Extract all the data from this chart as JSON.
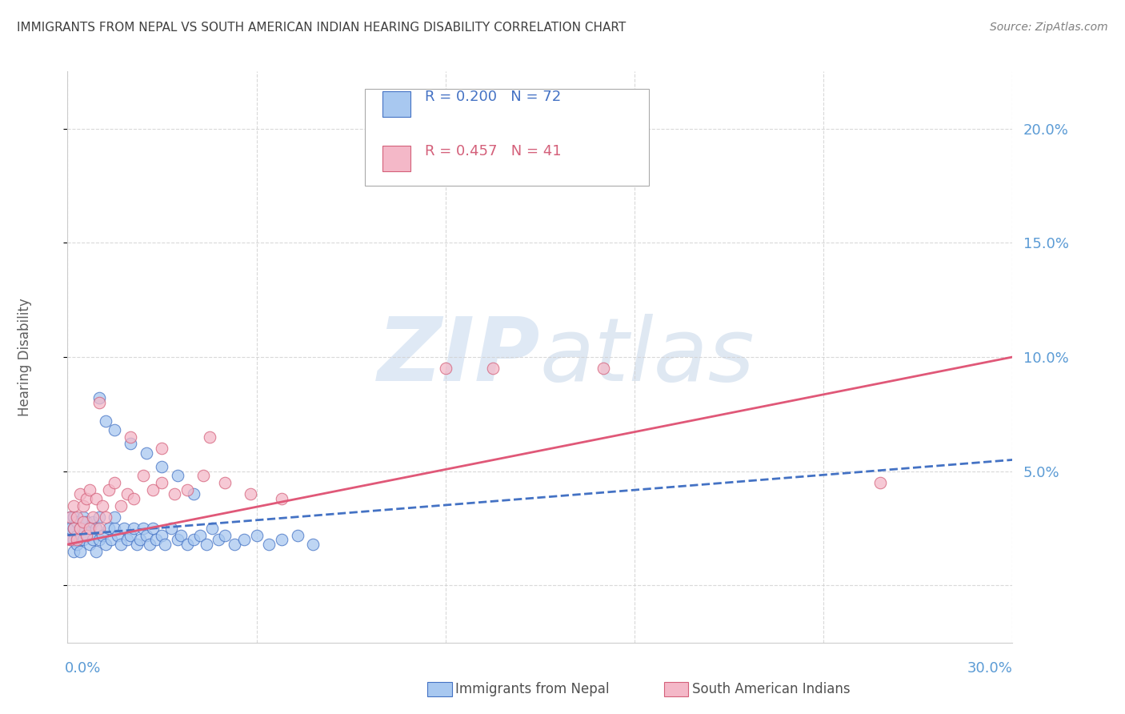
{
  "title": "IMMIGRANTS FROM NEPAL VS SOUTH AMERICAN INDIAN HEARING DISABILITY CORRELATION CHART",
  "source": "Source: ZipAtlas.com",
  "ylabel": "Hearing Disability",
  "xlim": [
    0.0,
    0.3
  ],
  "ylim": [
    -0.025,
    0.225
  ],
  "yticks": [
    0.0,
    0.05,
    0.1,
    0.15,
    0.2
  ],
  "yticklabels": [
    "",
    "5.0%",
    "10.0%",
    "15.0%",
    "20.0%"
  ],
  "xticks": [
    0.0,
    0.06,
    0.12,
    0.18,
    0.24,
    0.3
  ],
  "nepal_color": "#a8c8f0",
  "nepal_edge_color": "#4472c4",
  "sa_color": "#f4b8c8",
  "sa_edge_color": "#d4607a",
  "nepal_trend_color": "#4472c4",
  "sa_trend_color": "#e05878",
  "nepal_R": 0.2,
  "nepal_N": 72,
  "sa_R": 0.457,
  "sa_N": 41,
  "right_axis_color": "#5b9bd5",
  "grid_color": "#d0d0d0",
  "background": "#ffffff",
  "title_color": "#404040",
  "source_color": "#808080",
  "ylabel_color": "#606060",
  "watermark_color": "#d0e4f4",
  "nepal_x": [
    0.001,
    0.001,
    0.001,
    0.002,
    0.002,
    0.002,
    0.002,
    0.003,
    0.003,
    0.003,
    0.004,
    0.004,
    0.004,
    0.005,
    0.005,
    0.005,
    0.006,
    0.006,
    0.007,
    0.007,
    0.008,
    0.008,
    0.009,
    0.009,
    0.01,
    0.01,
    0.011,
    0.012,
    0.013,
    0.014,
    0.015,
    0.015,
    0.016,
    0.017,
    0.018,
    0.019,
    0.02,
    0.021,
    0.022,
    0.023,
    0.024,
    0.025,
    0.026,
    0.027,
    0.028,
    0.03,
    0.031,
    0.033,
    0.035,
    0.036,
    0.038,
    0.04,
    0.042,
    0.044,
    0.046,
    0.048,
    0.05,
    0.053,
    0.056,
    0.06,
    0.064,
    0.068,
    0.073,
    0.078,
    0.01,
    0.012,
    0.015,
    0.02,
    0.025,
    0.03,
    0.035,
    0.04
  ],
  "nepal_y": [
    0.02,
    0.025,
    0.03,
    0.015,
    0.02,
    0.025,
    0.03,
    0.018,
    0.022,
    0.028,
    0.015,
    0.02,
    0.025,
    0.02,
    0.025,
    0.03,
    0.022,
    0.028,
    0.018,
    0.025,
    0.02,
    0.028,
    0.015,
    0.025,
    0.02,
    0.03,
    0.022,
    0.018,
    0.025,
    0.02,
    0.025,
    0.03,
    0.022,
    0.018,
    0.025,
    0.02,
    0.022,
    0.025,
    0.018,
    0.02,
    0.025,
    0.022,
    0.018,
    0.025,
    0.02,
    0.022,
    0.018,
    0.025,
    0.02,
    0.022,
    0.018,
    0.02,
    0.022,
    0.018,
    0.025,
    0.02,
    0.022,
    0.018,
    0.02,
    0.022,
    0.018,
    0.02,
    0.022,
    0.018,
    0.082,
    0.072,
    0.068,
    0.062,
    0.058,
    0.052,
    0.048,
    0.04
  ],
  "sa_x": [
    0.001,
    0.001,
    0.002,
    0.002,
    0.003,
    0.003,
    0.004,
    0.004,
    0.005,
    0.005,
    0.006,
    0.006,
    0.007,
    0.007,
    0.008,
    0.009,
    0.01,
    0.011,
    0.012,
    0.013,
    0.015,
    0.017,
    0.019,
    0.021,
    0.024,
    0.027,
    0.03,
    0.034,
    0.038,
    0.043,
    0.05,
    0.058,
    0.068,
    0.135,
    0.17,
    0.258,
    0.01,
    0.02,
    0.03,
    0.045,
    0.12
  ],
  "sa_y": [
    0.02,
    0.03,
    0.025,
    0.035,
    0.02,
    0.03,
    0.025,
    0.04,
    0.028,
    0.035,
    0.022,
    0.038,
    0.025,
    0.042,
    0.03,
    0.038,
    0.025,
    0.035,
    0.03,
    0.042,
    0.045,
    0.035,
    0.04,
    0.038,
    0.048,
    0.042,
    0.045,
    0.04,
    0.042,
    0.048,
    0.045,
    0.04,
    0.038,
    0.095,
    0.095,
    0.045,
    0.08,
    0.065,
    0.06,
    0.065,
    0.095
  ],
  "nepal_trend_x": [
    0.0,
    0.3
  ],
  "nepal_trend_y": [
    0.022,
    0.055
  ],
  "sa_trend_x": [
    0.0,
    0.3
  ],
  "sa_trend_y": [
    0.018,
    0.1
  ],
  "legend_border_color": "#aaaaaa"
}
